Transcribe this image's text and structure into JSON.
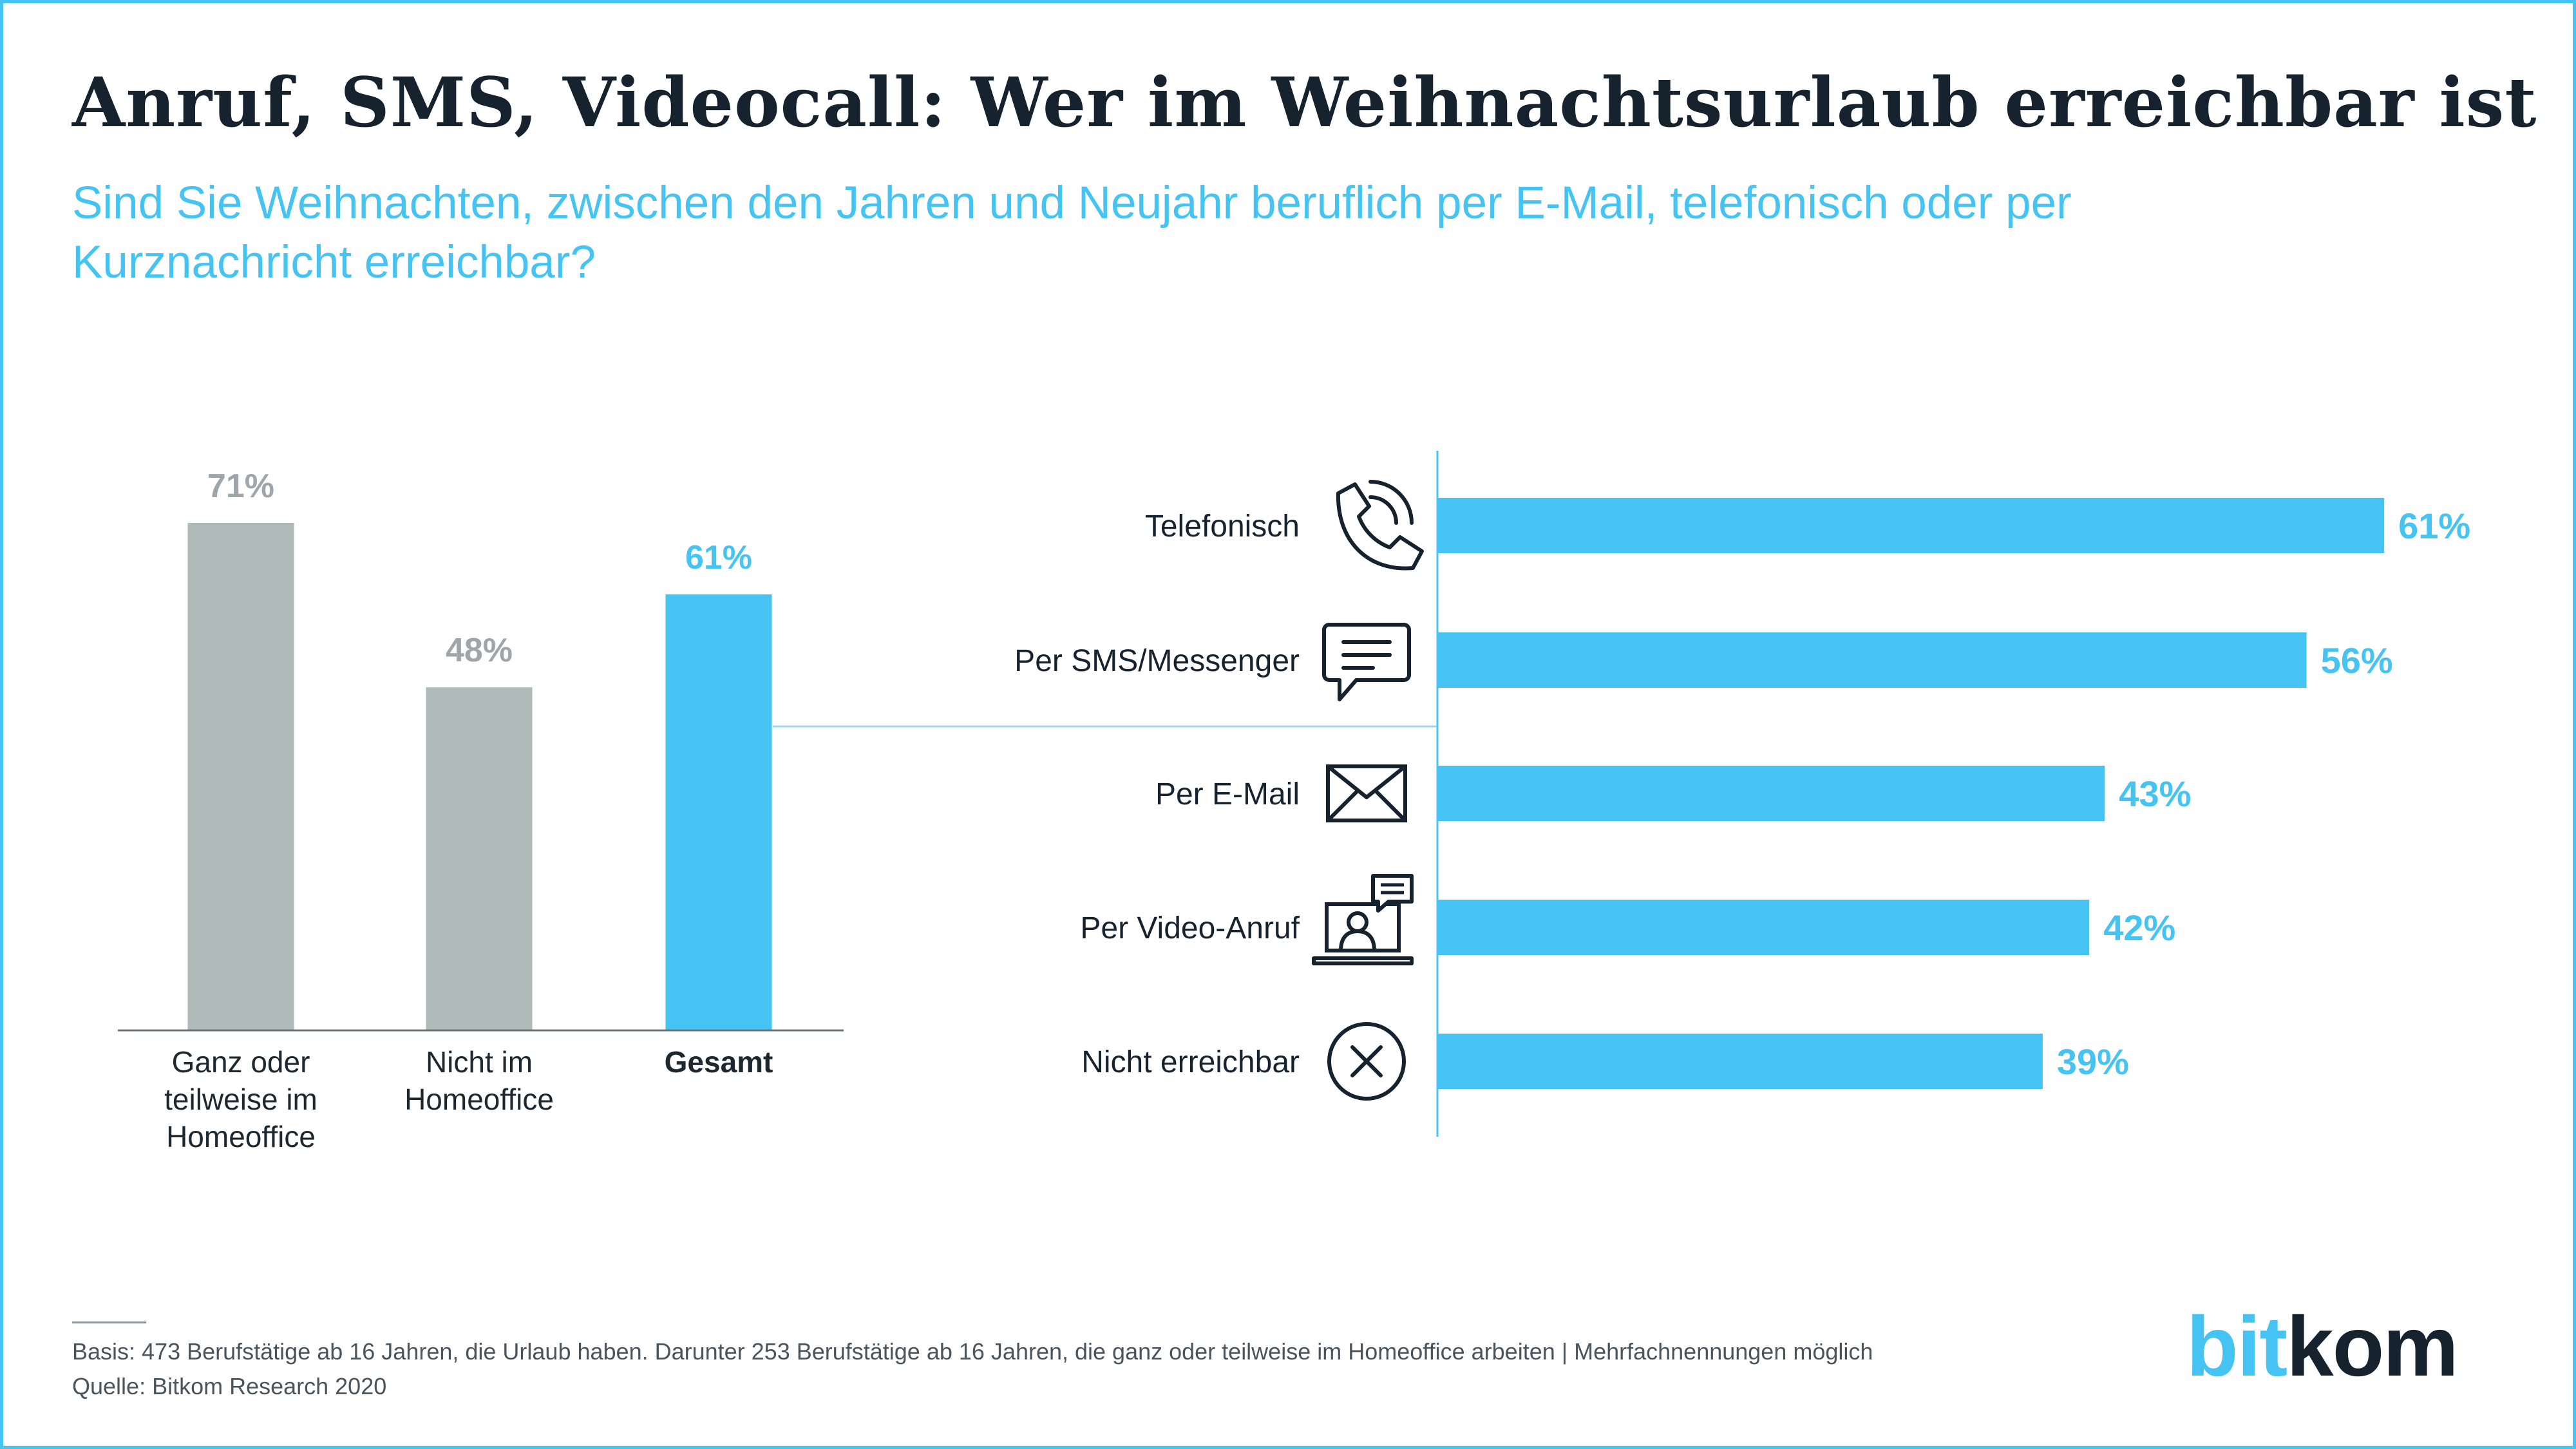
{
  "title": "Anruf, SMS, Videocall: Wer im Weihnachtsurlaub erreichbar ist",
  "subtitle": "Sind Sie Weihnachten, zwischen den Jahren und Neujahr beruflich per E-Mail, telefonisch oder per Kurznachricht erreichbar?",
  "footnote": {
    "basis": "Basis: 473 Berufstätige ab 16 Jahren, die Urlaub haben. Darunter 253 Berufstätige ab 16 Jahren, die ganz oder teilweise im Homeoffice arbeiten | Mehrfachnennungen möglich",
    "source": "Quelle: Bitkom Research 2020"
  },
  "logo": {
    "part1": "bit",
    "part2": "kom"
  },
  "colors": {
    "accent": "#45c3f3",
    "gray_bar": "#afbbb8",
    "gray_label": "#9ea6ab",
    "text": "#16232e"
  },
  "chart_data": [
    {
      "type": "bar",
      "orientation": "vertical",
      "categories": [
        "Ganz oder teilweise im Homeoffice",
        "Nicht im Homeoffice",
        "Gesamt"
      ],
      "values": [
        71,
        48,
        61
      ],
      "value_labels": [
        "71%",
        "48%",
        "61%"
      ],
      "highlight": "Gesamt",
      "ylim": [
        0,
        100
      ]
    },
    {
      "type": "bar",
      "orientation": "horizontal",
      "categories": [
        "Telefonisch",
        "Per SMS/Messenger",
        "Per E-Mail",
        "Per Video-Anruf",
        "Nicht erreichbar"
      ],
      "icons": [
        "phone-icon",
        "chat-bubble-icon",
        "envelope-icon",
        "video-call-icon",
        "x-circle-icon"
      ],
      "values": [
        61,
        56,
        43,
        42,
        39
      ],
      "value_labels": [
        "61%",
        "56%",
        "43%",
        "42%",
        "39%"
      ],
      "xlim": [
        0,
        100
      ]
    }
  ]
}
